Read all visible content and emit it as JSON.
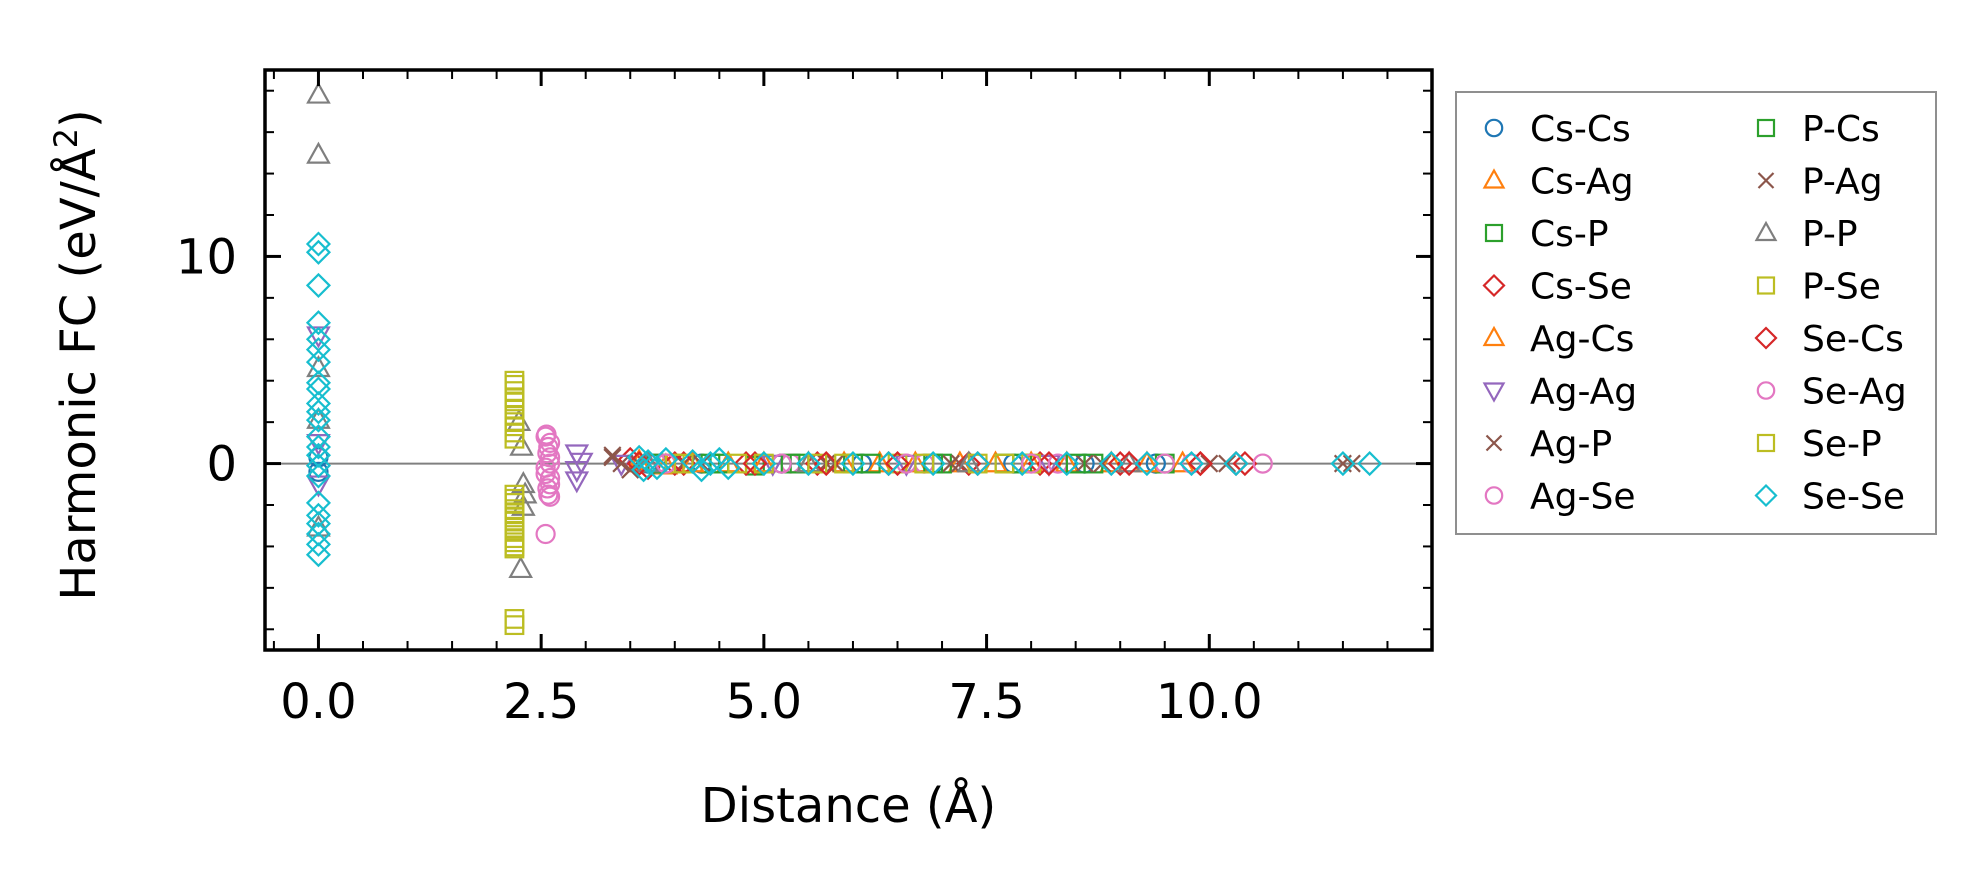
{
  "chart_data": {
    "type": "scatter",
    "xlabel": "Distance (Å)",
    "ylabel": "Harmonic FC (eV/Å",
    "ylabel_superscript": "2",
    "ylabel_suffix": ")",
    "xlim": [
      -0.6,
      12.5
    ],
    "ylim": [
      -9,
      19
    ],
    "xticks": [
      0.0,
      2.5,
      5.0,
      7.5,
      10.0
    ],
    "xtick_labels": [
      "0.0",
      "2.5",
      "5.0",
      "7.5",
      "10.0"
    ],
    "yticks": [
      0,
      10
    ],
    "ytick_labels": [
      "0",
      "10"
    ],
    "reference_line_y": 0,
    "legend_position": "outside-right",
    "series": [
      {
        "name": "Cs-Cs",
        "marker": "circle",
        "color": "#1f77b4",
        "points": [
          [
            0,
            0.3
          ],
          [
            0,
            -0.4
          ],
          [
            3.7,
            0
          ],
          [
            4.3,
            0
          ],
          [
            5.2,
            0
          ],
          [
            6.1,
            0
          ],
          [
            6.9,
            0
          ],
          [
            7.8,
            0
          ],
          [
            8.6,
            0
          ],
          [
            9.4,
            0
          ]
        ]
      },
      {
        "name": "Cs-Ag",
        "marker": "triangle-up",
        "color": "#ff7f0e",
        "points": [
          [
            3.6,
            0.1
          ],
          [
            3.9,
            -0.1
          ],
          [
            4.6,
            0
          ],
          [
            5.5,
            0
          ],
          [
            6.3,
            0
          ],
          [
            7.2,
            0
          ],
          [
            8.0,
            0
          ],
          [
            8.9,
            0
          ],
          [
            9.7,
            0
          ]
        ]
      },
      {
        "name": "Cs-P",
        "marker": "square",
        "color": "#2ca02c",
        "points": [
          [
            3.8,
            0
          ],
          [
            4.4,
            0
          ],
          [
            4.9,
            -0.1
          ],
          [
            5.4,
            0
          ],
          [
            6.2,
            0
          ],
          [
            7.0,
            0
          ],
          [
            7.9,
            0
          ],
          [
            8.7,
            0
          ],
          [
            9.5,
            0
          ]
        ]
      },
      {
        "name": "Cs-Se",
        "marker": "diamond",
        "color": "#d62728",
        "points": [
          [
            3.5,
            0.2
          ],
          [
            3.7,
            -0.2
          ],
          [
            4.0,
            0
          ],
          [
            4.8,
            0
          ],
          [
            5.6,
            0
          ],
          [
            6.4,
            0
          ],
          [
            7.3,
            0
          ],
          [
            8.1,
            0
          ],
          [
            9.0,
            0
          ],
          [
            9.9,
            0
          ],
          [
            10.3,
            0
          ]
        ]
      },
      {
        "name": "Ag-Cs",
        "marker": "triangle-up",
        "color": "#ff7f0e",
        "points": [
          [
            3.6,
            0
          ],
          [
            4.2,
            0
          ],
          [
            5.0,
            0
          ],
          [
            5.9,
            0
          ],
          [
            6.7,
            0
          ],
          [
            7.6,
            0
          ],
          [
            8.4,
            0
          ],
          [
            9.3,
            0
          ]
        ]
      },
      {
        "name": "Ag-Ag",
        "marker": "triangle-down",
        "color": "#9467bd",
        "points": [
          [
            0,
            6.2
          ],
          [
            0,
            1.0
          ],
          [
            0,
            -1.0
          ],
          [
            2.9,
            0.5
          ],
          [
            2.9,
            -0.3
          ],
          [
            2.9,
            -0.8
          ],
          [
            2.95,
            0.1
          ],
          [
            3.4,
            0
          ],
          [
            5.1,
            0
          ],
          [
            6.6,
            0
          ],
          [
            8.2,
            0
          ]
        ]
      },
      {
        "name": "Ag-P",
        "marker": "x",
        "color": "#8c564b",
        "points": [
          [
            3.3,
            0.4
          ],
          [
            3.5,
            -0.3
          ],
          [
            3.4,
            0
          ],
          [
            4.1,
            0
          ],
          [
            5.7,
            0
          ],
          [
            7.1,
            0
          ],
          [
            8.6,
            0
          ],
          [
            10.0,
            0
          ],
          [
            11.5,
            0
          ]
        ]
      },
      {
        "name": "Ag-Se",
        "marker": "circle",
        "color": "#e377c2",
        "points": [
          [
            2.55,
            1.3
          ],
          [
            2.58,
            0.8
          ],
          [
            2.6,
            0.3
          ],
          [
            2.55,
            -0.2
          ],
          [
            2.6,
            -0.7
          ],
          [
            2.57,
            -1.2
          ],
          [
            2.6,
            -1.6
          ],
          [
            2.55,
            -3.4
          ],
          [
            3.8,
            0
          ],
          [
            5.3,
            0
          ],
          [
            6.8,
            0
          ],
          [
            8.3,
            0
          ],
          [
            9.8,
            0
          ]
        ]
      },
      {
        "name": "P-Cs",
        "marker": "square",
        "color": "#2ca02c",
        "points": [
          [
            3.8,
            0
          ],
          [
            4.5,
            0
          ],
          [
            5.3,
            0
          ],
          [
            6.0,
            0
          ],
          [
            6.9,
            0
          ],
          [
            7.7,
            0
          ],
          [
            8.5,
            0
          ]
        ]
      },
      {
        "name": "P-Ag",
        "marker": "x",
        "color": "#8c564b",
        "points": [
          [
            3.3,
            0.3
          ],
          [
            3.6,
            0
          ],
          [
            4.3,
            0
          ],
          [
            5.8,
            0
          ],
          [
            7.2,
            0
          ],
          [
            8.8,
            0
          ],
          [
            10.2,
            0
          ],
          [
            11.6,
            0
          ]
        ]
      },
      {
        "name": "P-P",
        "marker": "triangle-up",
        "color": "#7f7f7f",
        "points": [
          [
            0,
            17.8
          ],
          [
            0,
            14.9
          ],
          [
            0,
            4.6
          ],
          [
            0,
            2.1
          ],
          [
            0,
            -3.1
          ],
          [
            2.25,
            2.0
          ],
          [
            2.28,
            0.8
          ],
          [
            2.3,
            -1.0
          ],
          [
            2.32,
            -1.5
          ],
          [
            2.3,
            -2.1
          ],
          [
            2.27,
            -5.1
          ],
          [
            3.7,
            0
          ],
          [
            5.5,
            0
          ],
          [
            7.3,
            0
          ],
          [
            9.1,
            0
          ]
        ]
      },
      {
        "name": "P-Se",
        "marker": "square",
        "color": "#bcbd22",
        "points": [
          [
            2.2,
            4.0
          ],
          [
            2.2,
            3.5
          ],
          [
            2.2,
            3.0
          ],
          [
            2.2,
            2.3
          ],
          [
            2.2,
            1.8
          ],
          [
            2.2,
            1.2
          ],
          [
            2.2,
            -1.5
          ],
          [
            2.2,
            -1.9
          ],
          [
            2.2,
            -2.4
          ],
          [
            2.2,
            -2.8
          ],
          [
            2.2,
            -3.3
          ],
          [
            2.2,
            -3.8
          ],
          [
            2.2,
            -4.1
          ],
          [
            2.2,
            -7.5
          ],
          [
            2.2,
            -7.8
          ],
          [
            4.0,
            0
          ],
          [
            4.7,
            0
          ],
          [
            5.6,
            0
          ],
          [
            6.5,
            0
          ],
          [
            7.4,
            0
          ],
          [
            8.0,
            0
          ]
        ]
      },
      {
        "name": "Se-Cs",
        "marker": "diamond",
        "color": "#d62728",
        "points": [
          [
            3.6,
            0
          ],
          [
            4.1,
            0
          ],
          [
            4.9,
            0
          ],
          [
            5.7,
            0
          ],
          [
            6.5,
            0
          ],
          [
            7.4,
            0
          ],
          [
            8.2,
            0
          ],
          [
            9.1,
            0
          ],
          [
            9.9,
            0
          ],
          [
            10.4,
            0
          ]
        ]
      },
      {
        "name": "Se-Ag",
        "marker": "circle",
        "color": "#e377c2",
        "points": [
          [
            2.56,
            1.4
          ],
          [
            2.6,
            1.0
          ],
          [
            2.57,
            0.5
          ],
          [
            2.6,
            0.0
          ],
          [
            2.55,
            -0.5
          ],
          [
            2.6,
            -1.0
          ],
          [
            2.58,
            -1.5
          ],
          [
            3.9,
            0
          ],
          [
            5.2,
            0
          ],
          [
            6.6,
            0
          ],
          [
            8.0,
            0
          ],
          [
            9.5,
            0
          ],
          [
            10.6,
            0
          ]
        ]
      },
      {
        "name": "Se-P",
        "marker": "square",
        "color": "#bcbd22",
        "points": [
          [
            2.2,
            3.8
          ],
          [
            2.2,
            3.2
          ],
          [
            2.2,
            2.6
          ],
          [
            2.2,
            2.0
          ],
          [
            2.2,
            1.5
          ],
          [
            2.2,
            -1.7
          ],
          [
            2.2,
            -2.2
          ],
          [
            2.2,
            -2.6
          ],
          [
            2.2,
            -3.1
          ],
          [
            2.2,
            -3.6
          ],
          [
            2.2,
            -4.0
          ],
          [
            4.1,
            0
          ],
          [
            5.0,
            0
          ],
          [
            5.9,
            0
          ],
          [
            6.8,
            0
          ],
          [
            7.7,
            0
          ]
        ]
      },
      {
        "name": "Se-Se",
        "marker": "diamond",
        "color": "#17becf",
        "points": [
          [
            0,
            10.6
          ],
          [
            0,
            10.2
          ],
          [
            0,
            8.6
          ],
          [
            0,
            6.8
          ],
          [
            0,
            6.0
          ],
          [
            0,
            5.5
          ],
          [
            0,
            4.9
          ],
          [
            0,
            3.9
          ],
          [
            0,
            3.6
          ],
          [
            0,
            2.9
          ],
          [
            0,
            2.5
          ],
          [
            0,
            2.1
          ],
          [
            0,
            1.3
          ],
          [
            0,
            0.8
          ],
          [
            0,
            0.4
          ],
          [
            0,
            -0.1
          ],
          [
            0,
            -0.6
          ],
          [
            0,
            -1.9
          ],
          [
            0,
            -2.5
          ],
          [
            0,
            -2.9
          ],
          [
            0,
            -3.4
          ],
          [
            0,
            -3.9
          ],
          [
            0,
            -4.4
          ],
          [
            3.6,
            0.3
          ],
          [
            3.65,
            -0.3
          ],
          [
            3.7,
            0.1
          ],
          [
            3.8,
            -0.2
          ],
          [
            3.9,
            0.2
          ],
          [
            4.2,
            0.1
          ],
          [
            4.3,
            -0.3
          ],
          [
            4.4,
            0.0
          ],
          [
            4.5,
            0.2
          ],
          [
            4.6,
            -0.2
          ],
          [
            5.0,
            0
          ],
          [
            5.5,
            0
          ],
          [
            6.0,
            0
          ],
          [
            6.4,
            0
          ],
          [
            6.9,
            0
          ],
          [
            7.4,
            0
          ],
          [
            7.9,
            0
          ],
          [
            8.4,
            0
          ],
          [
            8.9,
            0
          ],
          [
            9.3,
            0
          ],
          [
            9.8,
            0
          ],
          [
            10.3,
            0
          ],
          [
            11.5,
            0
          ],
          [
            11.8,
            0
          ]
        ]
      }
    ]
  }
}
